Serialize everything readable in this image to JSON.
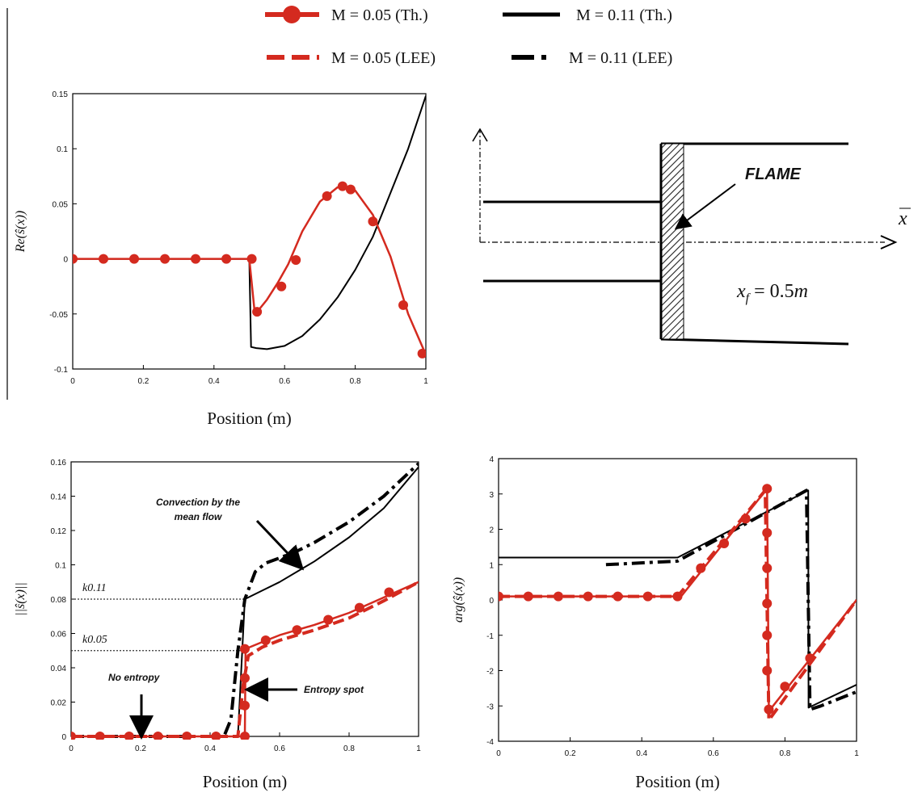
{
  "legend": [
    {
      "label": "M = 0.05 (Th.)",
      "color": "#d42a1f",
      "style": "solid-marker"
    },
    {
      "label": "M = 0.11 (Th.)",
      "color": "#000000",
      "style": "solid"
    },
    {
      "label": "M = 0.05 (LEE)",
      "color": "#d42a1f",
      "style": "dashed"
    },
    {
      "label": "M = 0.11 (LEE)",
      "color": "#000000",
      "style": "dashdot"
    }
  ],
  "diagram": {
    "flame_label": "FLAME",
    "position_label": "x_f = 0.5m",
    "axis_label": "x"
  },
  "chart_data": [
    {
      "id": "re",
      "type": "line",
      "xlabel": "Position (m)",
      "ylabel": "Re(ŝ(x))",
      "xlim": [
        0,
        1
      ],
      "ylim": [
        -0.1,
        0.15
      ],
      "xticks": [
        0,
        0.2,
        0.4,
        0.6,
        0.8,
        1
      ],
      "xticklabels": [
        "0",
        "0.2",
        "0.4",
        "0.6",
        "0.8",
        "1"
      ],
      "yticks": [
        -0.1,
        -0.05,
        0,
        0.05,
        0.1,
        0.15
      ],
      "yticklabels": [
        "-0.1",
        "-0.05",
        "0",
        "0.05",
        "0.1",
        "0.15"
      ],
      "series": [
        {
          "name": "M = 0.11 (Th.)",
          "color": "#000000",
          "style": "solid",
          "x": [
            0,
            0.5,
            0.505,
            0.52,
            0.55,
            0.6,
            0.65,
            0.7,
            0.75,
            0.8,
            0.85,
            0.9,
            0.95,
            1.0
          ],
          "y": [
            0,
            0,
            -0.08,
            -0.081,
            -0.082,
            -0.079,
            -0.07,
            -0.055,
            -0.035,
            -0.01,
            0.02,
            0.06,
            0.1,
            0.148
          ]
        },
        {
          "name": "M = 0.05 (Th.)",
          "color": "#d42a1f",
          "style": "solid-marker",
          "x": [
            0,
            0.5,
            0.515,
            0.53,
            0.55,
            0.58,
            0.61,
            0.65,
            0.7,
            0.75,
            0.8,
            0.85,
            0.9,
            0.95,
            1.0
          ],
          "y": [
            0,
            0,
            -0.048,
            -0.045,
            -0.037,
            -0.022,
            -0.005,
            0.025,
            0.052,
            0.065,
            0.062,
            0.04,
            0.002,
            -0.05,
            -0.087
          ],
          "markers_x": [
            0,
            0.087,
            0.174,
            0.261,
            0.348,
            0.435,
            0.507,
            0.522,
            0.591,
            0.632,
            0.72,
            0.764,
            0.787,
            0.85,
            0.936,
            0.99
          ],
          "markers_y": [
            0,
            0,
            0,
            0,
            0,
            0,
            0,
            -0.048,
            -0.025,
            -0.001,
            0.057,
            0.066,
            0.063,
            0.034,
            -0.042,
            -0.086
          ]
        }
      ]
    },
    {
      "id": "norm",
      "type": "line",
      "xlabel": "Position (m)",
      "ylabel": "||ŝ(x)||",
      "xlim": [
        0,
        1
      ],
      "ylim": [
        0,
        0.16
      ],
      "xticks": [
        0,
        0.2,
        0.4,
        0.6,
        0.8,
        1
      ],
      "xticklabels": [
        "0",
        "0.2",
        "0.4",
        "0.6",
        "0.8",
        "1"
      ],
      "yticks": [
        0,
        0.02,
        0.04,
        0.06,
        0.08,
        0.1,
        0.12,
        0.14,
        0.16
      ],
      "yticklabels": [
        "0",
        "0.02",
        "0.04",
        "0.06",
        "0.08",
        "0.1",
        "0.12",
        "0.14",
        "0.16"
      ],
      "reference_lines": [
        {
          "label": "k0.11",
          "y": 0.08
        },
        {
          "label": "k0.05",
          "y": 0.05
        }
      ],
      "annotations": [
        "Convection by the mean flow",
        "No entropy",
        "Entropy spot"
      ],
      "series": [
        {
          "name": "M = 0.11 (LEE)",
          "color": "#000000",
          "style": "dashdot",
          "x": [
            0,
            0.44,
            0.46,
            0.48,
            0.5,
            0.53,
            0.56,
            0.6,
            0.65,
            0.7,
            0.8,
            0.9,
            1.0
          ],
          "y": [
            0,
            0,
            0.01,
            0.05,
            0.08,
            0.096,
            0.101,
            0.104,
            0.108,
            0.113,
            0.125,
            0.14,
            0.159
          ]
        },
        {
          "name": "M = 0.11 (Th.)",
          "color": "#000000",
          "style": "solid",
          "x": [
            0,
            0.48,
            0.5,
            0.55,
            0.6,
            0.7,
            0.8,
            0.9,
            1.0
          ],
          "y": [
            0,
            0,
            0.08,
            0.085,
            0.09,
            0.102,
            0.116,
            0.133,
            0.157
          ]
        },
        {
          "name": "M = 0.05 (LEE)",
          "color": "#d42a1f",
          "style": "dashed",
          "x": [
            0,
            0.48,
            0.495,
            0.51,
            0.55,
            0.6,
            0.7,
            0.8,
            0.9,
            1.0
          ],
          "y": [
            0,
            0,
            0.03,
            0.047,
            0.052,
            0.056,
            0.062,
            0.069,
            0.079,
            0.09
          ]
        },
        {
          "name": "M = 0.05 (Th.)",
          "color": "#d42a1f",
          "style": "solid-marker",
          "x": [
            0,
            0.5,
            0.502,
            0.55,
            0.6,
            0.7,
            0.8,
            0.9,
            1.0
          ],
          "y": [
            0,
            0,
            0.051,
            0.055,
            0.059,
            0.065,
            0.072,
            0.081,
            0.09
          ],
          "markers_x": [
            0,
            0.083,
            0.167,
            0.25,
            0.333,
            0.417,
            0.5,
            0.5,
            0.5,
            0.5,
            0.56,
            0.65,
            0.74,
            0.83,
            0.915
          ],
          "markers_y": [
            0,
            0,
            0,
            0,
            0,
            0,
            0,
            0.018,
            0.034,
            0.051,
            0.056,
            0.062,
            0.068,
            0.075,
            0.084
          ]
        }
      ]
    },
    {
      "id": "arg",
      "type": "line",
      "xlabel": "Position (m)",
      "ylabel": "arg(ŝ(x))",
      "xlim": [
        0,
        1
      ],
      "ylim": [
        -4,
        4
      ],
      "xticks": [
        0,
        0.2,
        0.4,
        0.6,
        0.8,
        1
      ],
      "xticklabels": [
        "0",
        "0.2",
        "0.4",
        "0.6",
        "0.8",
        "1"
      ],
      "yticks": [
        -4,
        -3,
        -2,
        -1,
        0,
        1,
        2,
        3,
        4
      ],
      "yticklabels": [
        "-4",
        "-3",
        "-2",
        "-1",
        "0",
        "1",
        "2",
        "3",
        "4"
      ],
      "series": [
        {
          "name": "M = 0.11 (Th.)",
          "color": "#000000",
          "style": "solid",
          "x": [
            0,
            0.5,
            0.865,
            0.866,
            1.0
          ],
          "y": [
            1.2,
            1.2,
            3.1,
            -3.05,
            -2.4
          ]
        },
        {
          "name": "M = 0.11 (LEE)",
          "color": "#000000",
          "style": "dashdot",
          "x": [
            0.3,
            0.5,
            0.86,
            0.87,
            0.9,
            1.0
          ],
          "y": [
            1.0,
            1.1,
            3.1,
            -3.1,
            -3.0,
            -2.6
          ]
        },
        {
          "name": "M = 0.05 (LEE)",
          "color": "#d42a1f",
          "style": "dashed",
          "x": [
            0,
            0.5,
            0.745,
            0.755,
            1.0
          ],
          "y": [
            0.1,
            0.1,
            3.1,
            -3.4,
            0.0
          ]
        },
        {
          "name": "M = 0.05 (Th.)",
          "color": "#d42a1f",
          "style": "solid-marker",
          "x": [
            0,
            0.51,
            0.75,
            0.755,
            1.0
          ],
          "y": [
            0.1,
            0.1,
            3.15,
            -3.15,
            0.0
          ],
          "markers_x": [
            0,
            0.083,
            0.167,
            0.25,
            0.333,
            0.417,
            0.5,
            0.565,
            0.63,
            0.69,
            0.75,
            0.75,
            0.75,
            0.75,
            0.75,
            0.75,
            0.755,
            0.8,
            0.87
          ],
          "markers_y": [
            0.1,
            0.1,
            0.1,
            0.1,
            0.1,
            0.1,
            0.1,
            0.9,
            1.6,
            2.3,
            3.15,
            1.9,
            0.9,
            -0.1,
            -1.0,
            -2.0,
            -3.1,
            -2.45,
            -1.65
          ]
        }
      ]
    }
  ]
}
